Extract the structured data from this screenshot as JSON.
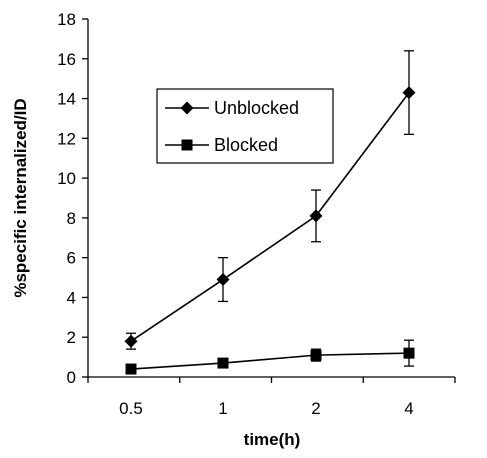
{
  "chart_data": {
    "type": "line",
    "title": "",
    "xlabel": "time(h)",
    "ylabel": "%specific  internalized/ID",
    "categories": [
      "0.5",
      "1",
      "2",
      "4"
    ],
    "ylim": [
      0,
      18
    ],
    "yticks": [
      0,
      2,
      4,
      6,
      8,
      10,
      12,
      14,
      16,
      18
    ],
    "grid": false,
    "legend_position": "top-left-inside",
    "series": [
      {
        "name": "Unblocked",
        "marker": "diamond",
        "color": "#000000",
        "values": [
          1.8,
          4.9,
          8.1,
          14.3
        ],
        "errors": [
          0.4,
          1.1,
          1.3,
          2.1
        ]
      },
      {
        "name": "Blocked",
        "marker": "square",
        "color": "#000000",
        "values": [
          0.4,
          0.7,
          1.1,
          1.2
        ],
        "errors": [
          0.15,
          0.15,
          0.3,
          0.65
        ]
      }
    ]
  }
}
